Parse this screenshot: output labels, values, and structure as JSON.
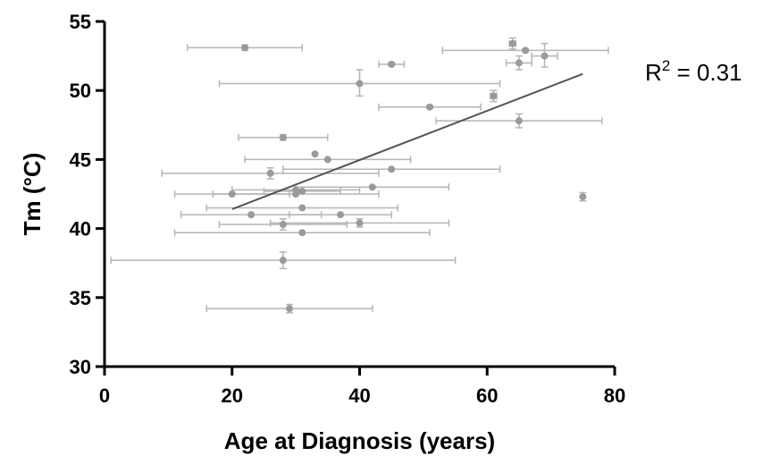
{
  "chart_data": {
    "type": "scatter",
    "title": "",
    "xlabel": "Age at Diagnosis (years)",
    "ylabel": "Tm (°C)",
    "xlim": [
      0,
      80
    ],
    "ylim": [
      30,
      55
    ],
    "x_ticks": [
      0,
      20,
      40,
      60,
      80
    ],
    "y_ticks": [
      30,
      35,
      40,
      45,
      50,
      55
    ],
    "grid": false,
    "annotation": {
      "r2_base": "R",
      "r2_sup": "2",
      "r2_value": " = 0.31"
    },
    "colors": {
      "points": "#9a9a9a",
      "error_bars": "#b5b5b5",
      "fit_line": "#555555",
      "axes": "#000000"
    },
    "fit_line": {
      "x": [
        20,
        75
      ],
      "y": [
        41.4,
        51.2
      ]
    },
    "points": [
      {
        "x": 22,
        "y": 53.1,
        "x_err": [
          13,
          31
        ],
        "y_err": [
          52.9,
          53.3
        ]
      },
      {
        "x": 40,
        "y": 50.5,
        "x_err": [
          18,
          62
        ],
        "y_err": [
          49.6,
          51.5
        ]
      },
      {
        "x": 45,
        "y": 51.9,
        "x_err": [
          43,
          47
        ],
        "y_err": [
          51.8,
          52.0
        ]
      },
      {
        "x": 64,
        "y": 53.4,
        "x_err": [
          63.5,
          64.5
        ],
        "y_err": [
          53.0,
          53.8
        ]
      },
      {
        "x": 66,
        "y": 52.9,
        "x_err": [
          53,
          79
        ],
        "y_err": [
          52.8,
          53.0
        ]
      },
      {
        "x": 65,
        "y": 52.0,
        "x_err": [
          63,
          67
        ],
        "y_err": [
          51.5,
          52.5
        ]
      },
      {
        "x": 69,
        "y": 52.5,
        "x_err": [
          67,
          71
        ],
        "y_err": [
          51.7,
          53.4
        ]
      },
      {
        "x": 61,
        "y": 49.6,
        "x_err": [
          60.5,
          61.5
        ],
        "y_err": [
          49.2,
          50.0
        ]
      },
      {
        "x": 51,
        "y": 48.8,
        "x_err": [
          43,
          59
        ],
        "y_err": [
          48.7,
          48.9
        ]
      },
      {
        "x": 65,
        "y": 47.8,
        "x_err": [
          52,
          78
        ],
        "y_err": [
          47.3,
          48.3
        ]
      },
      {
        "x": 28,
        "y": 46.6,
        "x_err": [
          21,
          35
        ],
        "y_err": [
          46.4,
          46.8
        ]
      },
      {
        "x": 33,
        "y": 45.4,
        "x_err": [
          33,
          33
        ],
        "y_err": [
          45.4,
          45.4
        ]
      },
      {
        "x": 35,
        "y": 45.0,
        "x_err": [
          22,
          48
        ],
        "y_err": [
          45.0,
          45.0
        ]
      },
      {
        "x": 45,
        "y": 44.3,
        "x_err": [
          28,
          62
        ],
        "y_err": [
          44.3,
          44.3
        ]
      },
      {
        "x": 26,
        "y": 44.0,
        "x_err": [
          9,
          43
        ],
        "y_err": [
          43.6,
          44.4
        ]
      },
      {
        "x": 42,
        "y": 43.0,
        "x_err": [
          30,
          54
        ],
        "y_err": [
          43.0,
          43.0
        ]
      },
      {
        "x": 20,
        "y": 42.5,
        "x_err": [
          11,
          29
        ],
        "y_err": [
          42.5,
          42.5
        ]
      },
      {
        "x": 30,
        "y": 42.8,
        "x_err": [
          20,
          40
        ],
        "y_err": [
          42.8,
          42.8
        ]
      },
      {
        "x": 30,
        "y": 42.5,
        "x_err": [
          17,
          43
        ],
        "y_err": [
          42.5,
          42.5
        ]
      },
      {
        "x": 31,
        "y": 42.7,
        "x_err": [
          25,
          37
        ],
        "y_err": [
          42.7,
          42.7
        ]
      },
      {
        "x": 31,
        "y": 41.5,
        "x_err": [
          16,
          46
        ],
        "y_err": [
          41.5,
          41.5
        ]
      },
      {
        "x": 23,
        "y": 41.0,
        "x_err": [
          12,
          34
        ],
        "y_err": [
          41.0,
          41.0
        ]
      },
      {
        "x": 37,
        "y": 41.0,
        "x_err": [
          29,
          45
        ],
        "y_err": [
          41.0,
          41.0
        ]
      },
      {
        "x": 28,
        "y": 40.3,
        "x_err": [
          18,
          38
        ],
        "y_err": [
          39.9,
          40.7
        ]
      },
      {
        "x": 40,
        "y": 40.4,
        "x_err": [
          26,
          54
        ],
        "y_err": [
          40.1,
          40.7
        ]
      },
      {
        "x": 31,
        "y": 39.7,
        "x_err": [
          11,
          51
        ],
        "y_err": [
          39.7,
          39.7
        ]
      },
      {
        "x": 28,
        "y": 37.7,
        "x_err": [
          1,
          55
        ],
        "y_err": [
          37.1,
          38.3
        ]
      },
      {
        "x": 29,
        "y": 34.2,
        "x_err": [
          16,
          42
        ],
        "y_err": [
          33.9,
          34.5
        ]
      },
      {
        "x": 75,
        "y": 42.3,
        "x_err": [
          75,
          75
        ],
        "y_err": [
          42.0,
          42.6
        ]
      }
    ]
  }
}
